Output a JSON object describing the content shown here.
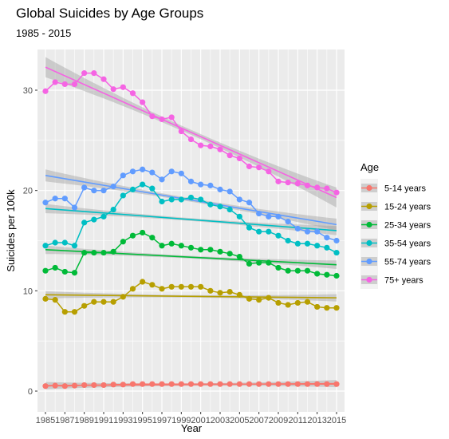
{
  "chart_data": {
    "type": "line",
    "title": "Global Suicides by Age Groups",
    "subtitle": "1985 - 2015",
    "xlabel": "Year",
    "ylabel": "Suicides per 100k",
    "xlim": [
      1985,
      2015
    ],
    "ylim": [
      0,
      33
    ],
    "grid": true,
    "legend_title": "Age",
    "legend_position": "right",
    "x_ticks": [
      1985,
      1987,
      1989,
      1991,
      1993,
      1995,
      1997,
      1999,
      2001,
      2003,
      2005,
      2007,
      2009,
      2011,
      2013,
      2015
    ],
    "y_ticks": [
      0,
      10,
      20,
      30
    ],
    "x": [
      1985,
      1986,
      1987,
      1988,
      1989,
      1990,
      1991,
      1992,
      1993,
      1994,
      1995,
      1996,
      1997,
      1998,
      1999,
      2000,
      2001,
      2002,
      2003,
      2004,
      2005,
      2006,
      2007,
      2008,
      2009,
      2010,
      2011,
      2012,
      2013,
      2014,
      2015
    ],
    "series": [
      {
        "name": "5-14 years",
        "color": "#F8766D",
        "values": [
          0.5,
          0.55,
          0.5,
          0.55,
          0.6,
          0.6,
          0.6,
          0.65,
          0.65,
          0.7,
          0.7,
          0.7,
          0.7,
          0.7,
          0.7,
          0.7,
          0.7,
          0.7,
          0.7,
          0.7,
          0.7,
          0.7,
          0.7,
          0.7,
          0.7,
          0.7,
          0.7,
          0.7,
          0.7,
          0.7,
          0.7
        ],
        "trend": [
          0.55,
          0.75
        ]
      },
      {
        "name": "15-24 years",
        "color": "#B79F00",
        "values": [
          9.2,
          9.1,
          7.9,
          7.9,
          8.5,
          8.9,
          8.9,
          8.9,
          9.4,
          10.2,
          10.9,
          10.6,
          10.2,
          10.4,
          10.4,
          10.4,
          10.4,
          10.0,
          9.8,
          9.9,
          9.6,
          9.2,
          9.1,
          9.3,
          8.8,
          8.6,
          8.8,
          8.9,
          8.4,
          8.3,
          8.3
        ],
        "trend": [
          9.6,
          9.3
        ]
      },
      {
        "name": "25-34 years",
        "color": "#00BA38",
        "values": [
          12.0,
          12.3,
          11.9,
          11.8,
          13.8,
          13.8,
          13.8,
          13.9,
          14.9,
          15.5,
          15.8,
          15.3,
          14.5,
          14.7,
          14.5,
          14.3,
          14.1,
          14.1,
          13.9,
          13.7,
          13.4,
          12.7,
          12.8,
          12.8,
          12.3,
          12.0,
          12.0,
          12.0,
          11.7,
          11.6,
          11.5
        ],
        "trend": [
          14.1,
          12.6
        ]
      },
      {
        "name": "35-54 years",
        "color": "#00BFC4",
        "values": [
          14.5,
          14.8,
          14.8,
          14.5,
          16.8,
          17.1,
          17.4,
          18.1,
          19.5,
          20.1,
          20.6,
          20.2,
          18.9,
          19.1,
          19.1,
          19.3,
          19.1,
          18.6,
          18.4,
          18.1,
          17.4,
          16.3,
          15.9,
          15.9,
          15.5,
          15.0,
          14.7,
          14.7,
          14.5,
          14.3,
          13.8
        ],
        "trend": [
          18.2,
          16.0
        ]
      },
      {
        "name": "55-74 years",
        "color": "#619CFF",
        "values": [
          18.8,
          19.2,
          19.2,
          18.3,
          20.3,
          20.0,
          20.0,
          20.4,
          21.5,
          21.9,
          22.1,
          21.8,
          21.1,
          21.9,
          21.7,
          20.9,
          20.6,
          20.5,
          20.1,
          19.9,
          19.1,
          18.8,
          17.7,
          17.4,
          17.4,
          16.9,
          16.2,
          15.9,
          15.9,
          15.3,
          15.0
        ],
        "trend": [
          21.5,
          16.6
        ]
      },
      {
        "name": "75+ years",
        "color": "#F564E3",
        "values": [
          29.9,
          30.8,
          30.6,
          30.6,
          31.7,
          31.7,
          31.1,
          30.1,
          30.3,
          29.7,
          28.8,
          27.4,
          27.1,
          27.3,
          25.9,
          25.1,
          24.5,
          24.4,
          24.1,
          23.5,
          23.2,
          22.4,
          22.3,
          21.9,
          20.9,
          20.8,
          20.7,
          20.5,
          20.3,
          20.2,
          19.8
        ],
        "trend": [
          32.3,
          19.3
        ]
      }
    ]
  }
}
